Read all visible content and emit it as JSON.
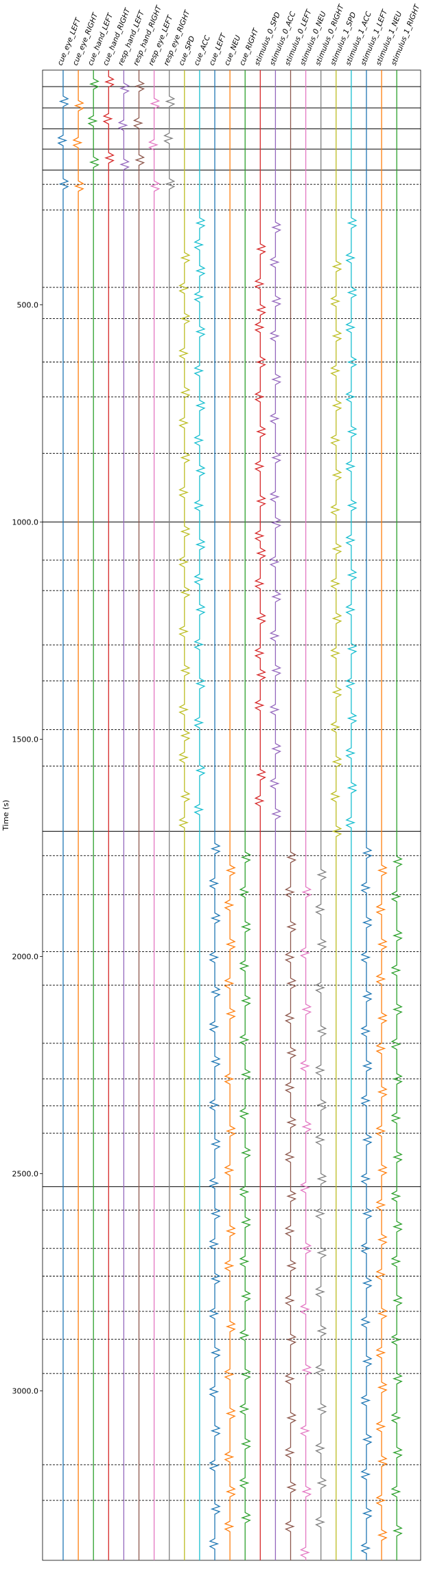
{
  "chart_data": {
    "type": "line",
    "title": "",
    "ylabel": "Time (s)",
    "xlabel": "",
    "ylim": [
      3390,
      -40
    ],
    "grid": false,
    "legend": "none",
    "columns": [
      {
        "name": "cue_eye_LEFT",
        "color": "#1f77b4",
        "events": [
          20,
          110,
          210
        ]
      },
      {
        "name": "cue_eye_RIGHT",
        "color": "#ff7f0e",
        "events": [
          30,
          115,
          215
        ]
      },
      {
        "name": "cue_hand_LEFT",
        "color": "#2ca02c",
        "events": [
          -20,
          65,
          160
        ]
      },
      {
        "name": "cue_hand_RIGHT",
        "color": "#d62728",
        "events": [
          -25,
          60,
          150
        ]
      },
      {
        "name": "resp_hand_LEFT",
        "color": "#9467bd",
        "events": [
          -10,
          75,
          165
        ]
      },
      {
        "name": "resp_hand_RIGHT",
        "color": "#8c564b",
        "events": [
          -15,
          70,
          155
        ]
      },
      {
        "name": "resp_eye_LEFT",
        "color": "#e377c2",
        "events": [
          25,
          120,
          215
        ]
      },
      {
        "name": "resp_eye_RIGHT",
        "color": "#7f7f7f",
        "events": [
          20,
          105,
          210
        ]
      },
      {
        "name": "cue_SPD",
        "color": "#bcbd22",
        "events": [
          380,
          450,
          520,
          600,
          690,
          760,
          840,
          920,
          1010,
          1080,
          1150,
          1240,
          1330,
          1420,
          1480,
          1530,
          1620,
          1680
        ]
      },
      {
        "name": "cue_ACC",
        "color": "#17becf",
        "events": [
          300,
          350,
          410,
          470,
          550,
          640,
          720,
          800,
          870,
          950,
          1040,
          1120,
          1190,
          1270,
          1360,
          1450,
          1560,
          1650
        ]
      },
      {
        "name": "cue_LEFT",
        "color": "#1f77b4",
        "events": [
          1740,
          1820,
          1900,
          1990,
          2070,
          2150,
          2230,
          2330,
          2420,
          2510,
          2580,
          2650,
          2730,
          2810,
          2900,
          2990,
          3080,
          3160,
          3260,
          3340
        ]
      },
      {
        "name": "cue_NEU",
        "color": "#ff7f0e",
        "events": [
          1790,
          1870,
          1960,
          2050,
          2120,
          2270,
          2390,
          2480,
          2620,
          2700,
          2840,
          2950,
          3040,
          3140,
          3220,
          3300
        ]
      },
      {
        "name": "cue_RIGHT",
        "color": "#2ca02c",
        "events": [
          1760,
          1840,
          1920,
          2010,
          2090,
          2180,
          2260,
          2350,
          2440,
          2530,
          2600,
          2690,
          2770,
          2860,
          2950,
          3030,
          3110,
          3200,
          3280
        ]
      },
      {
        "name": "stimulus_0_SPD",
        "color": "#d62728",
        "events": [
          360,
          440,
          500,
          540,
          620,
          700,
          780,
          860,
          940,
          1020,
          1060,
          1130,
          1210,
          1290,
          1340,
          1410,
          1570,
          1630
        ]
      },
      {
        "name": "stimulus_0_ACC",
        "color": "#9467bd",
        "events": [
          310,
          390,
          480,
          560,
          660,
          750,
          840,
          930,
          990,
          1080,
          1160,
          1250,
          1330,
          1420,
          1510,
          1590,
          1660
        ]
      },
      {
        "name": "stimulus_0_LEFT",
        "color": "#8c564b",
        "events": [
          1760,
          1840,
          1920,
          1990,
          2050,
          2130,
          2210,
          2290,
          2370,
          2450,
          2540,
          2620,
          2700,
          2780,
          2870,
          2960,
          3050,
          3130,
          3210,
          3300
        ]
      },
      {
        "name": "stimulus_0_NEU",
        "color": "#e377c2",
        "events": [
          1840,
          1980,
          2110,
          2240,
          2380,
          2520,
          2660,
          2800,
          2940,
          3080,
          3220,
          3360
        ]
      },
      {
        "name": "stimulus_0_RIGHT",
        "color": "#7f7f7f",
        "events": [
          1800,
          1880,
          1960,
          2060,
          2160,
          2250,
          2330,
          2410,
          2500,
          2580,
          2670,
          2760,
          2850,
          2940,
          3030,
          3120,
          3200,
          3290,
          3370
        ]
      },
      {
        "name": "stimulus_1_SPD",
        "color": "#bcbd22",
        "events": [
          400,
          480,
          560,
          640,
          720,
          800,
          880,
          960,
          1050,
          1130,
          1210,
          1290,
          1380,
          1460,
          1540,
          1620,
          1700
        ]
      },
      {
        "name": "stimulus_1_ACC",
        "color": "#17becf",
        "events": [
          300,
          380,
          460,
          540,
          620,
          700,
          780,
          860,
          950,
          1030,
          1110,
          1190,
          1280,
          1360,
          1440,
          1520,
          1600,
          1680
        ]
      },
      {
        "name": "stimulus_1_LEFT",
        "color": "#1f77b4",
        "events": [
          1750,
          1830,
          1910,
          1990,
          2080,
          2160,
          2240,
          2320,
          2410,
          2500,
          2580,
          2660,
          2740,
          2830,
          2920,
          3010,
          3100,
          3180,
          3270,
          3350
        ]
      },
      {
        "name": "stimulus_1_NEU",
        "color": "#ff7f0e",
        "events": [
          1790,
          1880,
          1960,
          2040,
          2130,
          2200,
          2300,
          2390,
          2480,
          2560,
          2640,
          2720,
          2810,
          2900,
          2980,
          3070,
          3150,
          3240,
          3320
        ]
      },
      {
        "name": "stimulus_1_RIGHT",
        "color": "#2ca02c",
        "events": [
          1770,
          1850,
          1940,
          2020,
          2110,
          2190,
          2270,
          2360,
          2450,
          2540,
          2610,
          2690,
          2780,
          2870,
          2960,
          3050,
          3130,
          3220,
          3310
        ]
      }
    ],
    "yticks": [
      500.0,
      1000.0,
      1500.0,
      2000.0,
      2500.0,
      3000.0
    ],
    "ytick_labels": [
      "500.0",
      "1000.0",
      "1500.0",
      "2000.0",
      "2500.0",
      "3000.0"
    ],
    "solid_hlines": [
      -2,
      47,
      95,
      142,
      190,
      1000,
      1712,
      2530
    ],
    "dashed_hlines": [
      223,
      282,
      460,
      532,
      632,
      712,
      842,
      1088,
      1158,
      1283,
      1366,
      1478,
      1562,
      1768,
      1858,
      1989,
      2066,
      2200,
      2282,
      2344,
      2407,
      2584,
      2672,
      2736,
      2817,
      2881,
      2960,
      3170,
      3252
    ]
  }
}
